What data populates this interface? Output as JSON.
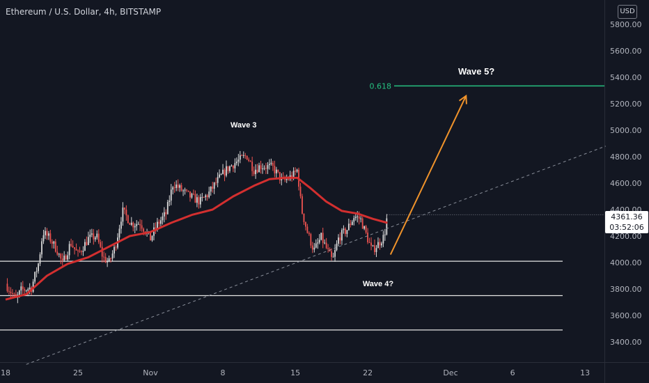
{
  "header": {
    "title": "Ethereum / U.S. Dollar, 4h, BITSTAMP",
    "currency": "USD"
  },
  "price_tag": {
    "price": "4361.36",
    "countdown": "03:52:06"
  },
  "colors": {
    "background": "#131722",
    "up_candle": "#d9d9d9",
    "down_candle": "#ef5350",
    "moving_average": "#d32f2f",
    "fib_level": "#26c281",
    "arrow": "#f0932b",
    "trendline": "#8a8f9a",
    "support_lines": "#e6e6e6",
    "axis_text": "#b2b5be"
  },
  "chart_data": {
    "type": "candlestick",
    "symbol": "Ethereum / U.S. Dollar",
    "interval": "4h",
    "exchange": "BITSTAMP",
    "ylim": [
      3200,
      5960
    ],
    "y_ticks": [
      "5800.00",
      "5600.00",
      "5400.00",
      "5200.00",
      "5000.00",
      "4800.00",
      "4600.00",
      "4400.00",
      "4200.00",
      "4000.00",
      "3800.00",
      "3600.00",
      "3400.00"
    ],
    "x_ticks": [
      "18",
      "25",
      "Nov",
      "8",
      "15",
      "22",
      "Dec",
      "6",
      "13"
    ],
    "x_tick_days": [
      0,
      7,
      14,
      21,
      28,
      35,
      43,
      49,
      56
    ],
    "close_path": [
      [
        0,
        3840
      ],
      [
        1,
        3720
      ],
      [
        1.5,
        3790
      ],
      [
        2.5,
        3810
      ],
      [
        3.2,
        4000
      ],
      [
        3.6,
        4230
      ],
      [
        4.3,
        4180
      ],
      [
        5,
        4090
      ],
      [
        5.5,
        3990
      ],
      [
        6.3,
        4150
      ],
      [
        7,
        4060
      ],
      [
        8,
        4180
      ],
      [
        8.8,
        4200
      ],
      [
        9.4,
        4040
      ],
      [
        10,
        4000
      ],
      [
        10.6,
        4120
      ],
      [
        11.3,
        4390
      ],
      [
        12.2,
        4290
      ],
      [
        13,
        4300
      ],
      [
        14,
        4180
      ],
      [
        14.6,
        4280
      ],
      [
        15.5,
        4370
      ],
      [
        16.2,
        4600
      ],
      [
        16.8,
        4560
      ],
      [
        17.8,
        4500
      ],
      [
        18.8,
        4460
      ],
      [
        19.6,
        4520
      ],
      [
        20.5,
        4620
      ],
      [
        21.3,
        4700
      ],
      [
        22.1,
        4750
      ],
      [
        23.3,
        4810
      ],
      [
        24,
        4700
      ],
      [
        24.6,
        4730
      ],
      [
        25.8,
        4720
      ],
      [
        26.8,
        4610
      ],
      [
        27.8,
        4660
      ],
      [
        28.2,
        4700
      ],
      [
        28.6,
        4400
      ],
      [
        29.2,
        4220
      ],
      [
        29.8,
        4090
      ],
      [
        30.5,
        4190
      ],
      [
        31.1,
        4090
      ],
      [
        31.6,
        4010
      ],
      [
        32.2,
        4190
      ],
      [
        33,
        4250
      ],
      [
        33.7,
        4350
      ],
      [
        34.3,
        4330
      ],
      [
        34.9,
        4200
      ],
      [
        35.4,
        4090
      ],
      [
        35.9,
        4130
      ],
      [
        36.6,
        4200
      ],
      [
        36.9,
        4361.36
      ]
    ],
    "moving_average": [
      [
        0,
        3720
      ],
      [
        2,
        3760
      ],
      [
        4,
        3900
      ],
      [
        6,
        3990
      ],
      [
        8,
        4040
      ],
      [
        10,
        4120
      ],
      [
        12,
        4200
      ],
      [
        14,
        4230
      ],
      [
        16,
        4300
      ],
      [
        18,
        4360
      ],
      [
        20,
        4400
      ],
      [
        22,
        4500
      ],
      [
        24,
        4580
      ],
      [
        25.5,
        4630
      ],
      [
        27,
        4640
      ],
      [
        28.2,
        4640
      ],
      [
        29.5,
        4560
      ],
      [
        31,
        4460
      ],
      [
        32.5,
        4390
      ],
      [
        34,
        4370
      ],
      [
        35.5,
        4330
      ],
      [
        36.9,
        4300
      ]
    ],
    "horizontal_levels": [
      4010,
      3750,
      3490
    ],
    "fib_level": {
      "label": "0.618",
      "value": 5335
    },
    "trendline": [
      [
        2,
        3230
      ],
      [
        58,
        4880
      ]
    ],
    "projection_arrow": {
      "from": [
        37.2,
        4060
      ],
      "to": [
        44.5,
        5260
      ]
    },
    "annotations": [
      {
        "text": "Wave 3",
        "x": 23,
        "y": 5020
      },
      {
        "text": "Wave 4?",
        "x": 36,
        "y": 3820
      },
      {
        "text": "Wave 5?",
        "x": 45.5,
        "y": 5420
      }
    ],
    "last_price": 4361.36
  }
}
